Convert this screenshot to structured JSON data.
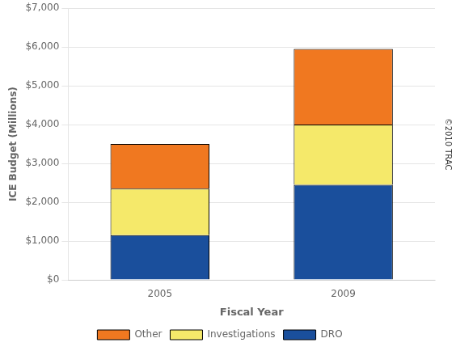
{
  "chart_data": {
    "type": "bar",
    "stacked": true,
    "categories": [
      "2005",
      "2009"
    ],
    "series": [
      {
        "name": "DRO",
        "color": "#1A4F9C",
        "values": [
          1150,
          2450
        ]
      },
      {
        "name": "Investigations",
        "color": "#F5E96A",
        "values": [
          1200,
          1550
        ]
      },
      {
        "name": "Other",
        "color": "#F07820",
        "values": [
          1150,
          1950
        ]
      }
    ],
    "x_label": "Fiscal Year",
    "y_label": "ICE Budget (Millions)",
    "ylim": [
      0,
      7000
    ],
    "yticks": [
      {
        "value": 0,
        "label": "$0"
      },
      {
        "value": 1000,
        "label": "$1,000"
      },
      {
        "value": 2000,
        "label": "$2,000"
      },
      {
        "value": 3000,
        "label": "$3,000"
      },
      {
        "value": 4000,
        "label": "$4,000"
      },
      {
        "value": 5000,
        "label": "$5,000"
      },
      {
        "value": 6000,
        "label": "$6,000"
      },
      {
        "value": 7000,
        "label": "$7,000"
      }
    ],
    "grid": true,
    "legend": "bottom",
    "annotation": "©2010 TRAC"
  }
}
